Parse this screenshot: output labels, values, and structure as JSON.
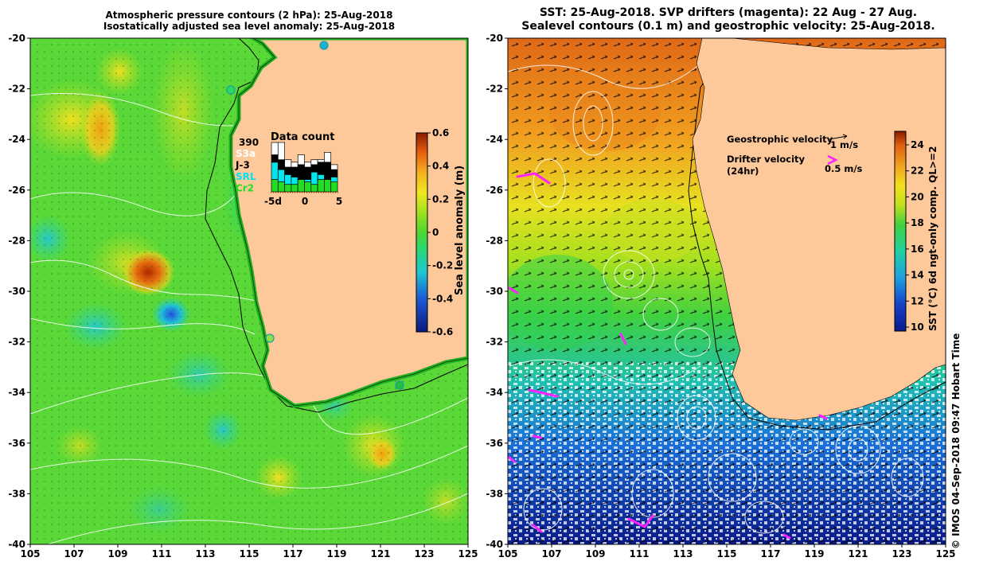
{
  "left_panel": {
    "title_line1": "Atmospheric pressure contours (2 hPa): 25-Aug-2018",
    "title_line2": "Isostatically adjusted sea level anomaly: 25-Aug-2018",
    "x_ticks": [
      "105",
      "107",
      "109",
      "111",
      "113",
      "115",
      "117",
      "119",
      "121",
      "123",
      "125"
    ],
    "y_ticks": [
      "-20",
      "-22",
      "-24",
      "-26",
      "-28",
      "-30",
      "-32",
      "-34",
      "-36",
      "-38",
      "-40"
    ],
    "colorbar": {
      "label": "Sea level anomaly (m)",
      "ticks": [
        "0.6",
        "0.4",
        "0.2",
        "0",
        "-0.2",
        "-0.4",
        "-0.6"
      ],
      "range": [
        -0.6,
        0.6
      ]
    },
    "data_count": {
      "title": "Data count",
      "total": "390",
      "legend": [
        {
          "label": "S3a",
          "color": "#ffffff"
        },
        {
          "label": "J-3",
          "color": "#000000"
        },
        {
          "label": "SRL",
          "color": "#00e5ee"
        },
        {
          "label": "Cr2",
          "color": "#22dd22"
        }
      ],
      "x_ticks": [
        "-5d",
        "0",
        "5"
      ],
      "bars": [
        {
          "s3a": 0.25,
          "j3": 0.15,
          "srl": 0.35,
          "cr2": 0.25
        },
        {
          "s3a": 0.35,
          "j3": 0.2,
          "srl": 0.25,
          "cr2": 0.2
        },
        {
          "s3a": 0.15,
          "j3": 0.15,
          "srl": 0.2,
          "cr2": 0.15
        },
        {
          "s3a": 0.1,
          "j3": 0.2,
          "srl": 0.15,
          "cr2": 0.15
        },
        {
          "s3a": 0.2,
          "j3": 0.3,
          "srl": 0.0,
          "cr2": 0.25
        },
        {
          "s3a": 0.1,
          "j3": 0.25,
          "srl": 0.05,
          "cr2": 0.2
        },
        {
          "s3a": 0.1,
          "j3": 0.15,
          "srl": 0.25,
          "cr2": 0.15
        },
        {
          "s3a": 0.05,
          "j3": 0.25,
          "srl": 0.1,
          "cr2": 0.25
        },
        {
          "s3a": 0.2,
          "j3": 0.35,
          "srl": 0.0,
          "cr2": 0.25
        },
        {
          "s3a": 0.1,
          "j3": 0.15,
          "srl": 0.1,
          "cr2": 0.2
        }
      ]
    }
  },
  "right_panel": {
    "title_line1": "SST: 25-Aug-2018. SVP drifters (magenta): 22 Aug - 27 Aug.",
    "title_line2": "Sealevel contours (0.1 m) and geostrophic velocity: 25-Aug-2018.",
    "x_ticks": [
      "105",
      "107",
      "109",
      "111",
      "113",
      "115",
      "117",
      "119",
      "121",
      "123",
      "125"
    ],
    "y_ticks": [
      "-20",
      "-22",
      "-24",
      "-26",
      "-28",
      "-30",
      "-32",
      "-34",
      "-36",
      "-38",
      "-40"
    ],
    "colorbar": {
      "label": "SST (°C) 6d ngt-only comp. QL>=2",
      "ticks": [
        "24",
        "22",
        "20",
        "18",
        "16",
        "14",
        "12",
        "10"
      ],
      "range": [
        10,
        25
      ]
    },
    "legend": {
      "geo_label": "Geostrophic velocity",
      "geo_value": "1 m/s",
      "drifter_label": "Drifter velocity",
      "drifter_sub": "(24hr)",
      "drifter_value": "0.5 m/s"
    }
  },
  "credit": "©  IMOS 04-Sep-2018 09:47 Hobart Time",
  "colors": {
    "land": "#fdc89a",
    "drifter": "#ff22ff",
    "ssha_high": "#c43a00",
    "ssha_low": "#1e5bd4"
  }
}
